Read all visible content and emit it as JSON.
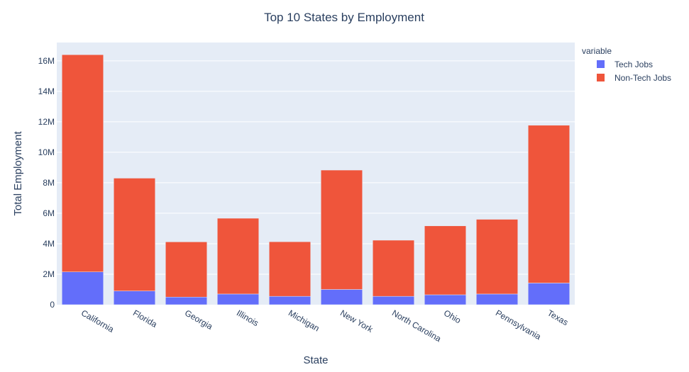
{
  "chart_data": {
    "type": "bar",
    "stacked": true,
    "title": "Top 10 States by Employment",
    "xlabel": "State",
    "ylabel": "Total Employment",
    "categories": [
      "California",
      "Florida",
      "Georgia",
      "Illinois",
      "Michigan",
      "New York",
      "North Carolina",
      "Ohio",
      "Pennsylvania",
      "Texas"
    ],
    "series": [
      {
        "name": "Tech Jobs",
        "color": "#636efa",
        "values": [
          2150000,
          900000,
          500000,
          700000,
          550000,
          1000000,
          550000,
          650000,
          700000,
          1420000
        ]
      },
      {
        "name": "Non-Tech Jobs",
        "color": "#ef553b",
        "values": [
          14250000,
          7400000,
          3620000,
          4970000,
          3580000,
          7830000,
          3680000,
          4520000,
          4900000,
          10350000
        ]
      }
    ],
    "ylim": [
      0,
      17200000
    ],
    "yticks": [
      0,
      2000000,
      4000000,
      6000000,
      8000000,
      10000000,
      12000000,
      14000000,
      16000000
    ],
    "ytick_labels": [
      "0",
      "2M",
      "4M",
      "6M",
      "8M",
      "10M",
      "12M",
      "14M",
      "16M"
    ],
    "legend": {
      "title": "variable",
      "position": "top-right"
    },
    "grid": true,
    "plot_bg": "#e5ecf6"
  }
}
